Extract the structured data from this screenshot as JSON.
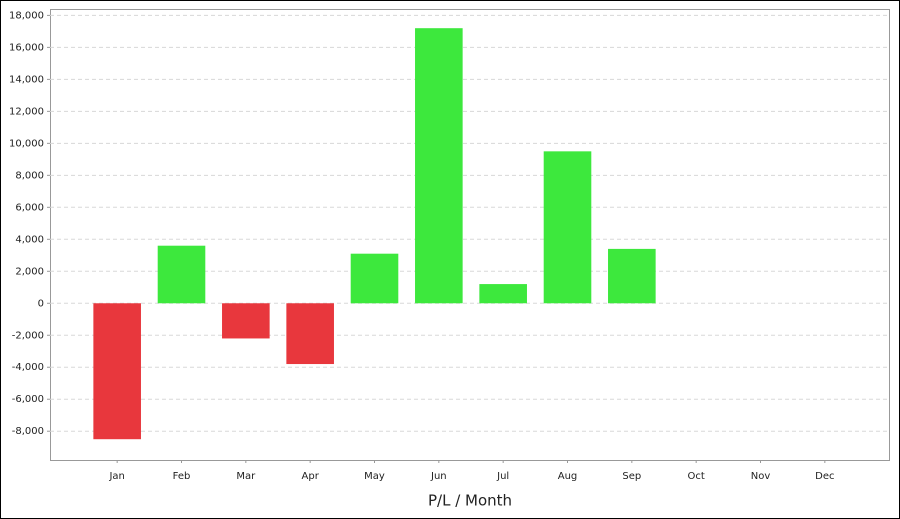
{
  "chart_data": {
    "type": "bar",
    "title": "P/L / Month",
    "categories": [
      "Jan",
      "Feb",
      "Mar",
      "Apr",
      "May",
      "Jun",
      "Jul",
      "Aug",
      "Sep",
      "Oct",
      "Nov",
      "Dec"
    ],
    "values": [
      -8500,
      3600,
      -2200,
      -3800,
      3100,
      17200,
      1200,
      9500,
      3400,
      null,
      null,
      null
    ],
    "positive_color": "#3de83d",
    "negative_color": "#e8373d",
    "ylim": [
      -9800,
      18400
    ],
    "yticks": [
      {
        "value": -8000,
        "label": "-8,000"
      },
      {
        "value": -6000,
        "label": "-6,000"
      },
      {
        "value": -4000,
        "label": "-4,000"
      },
      {
        "value": -2000,
        "label": "-2,000"
      },
      0,
      {
        "value": 2000,
        "label": "2,000"
      },
      {
        "value": 4000,
        "label": "4,000"
      },
      {
        "value": 6000,
        "label": "6,000"
      },
      {
        "value": 8000,
        "label": "8,000"
      },
      {
        "value": 10000,
        "label": "10,000"
      },
      {
        "value": 12000,
        "label": "12,000"
      },
      {
        "value": 14000,
        "label": "14,000"
      },
      {
        "value": 16000,
        "label": "16,000"
      },
      {
        "value": 18000,
        "label": "18,000"
      }
    ],
    "grid": true
  }
}
